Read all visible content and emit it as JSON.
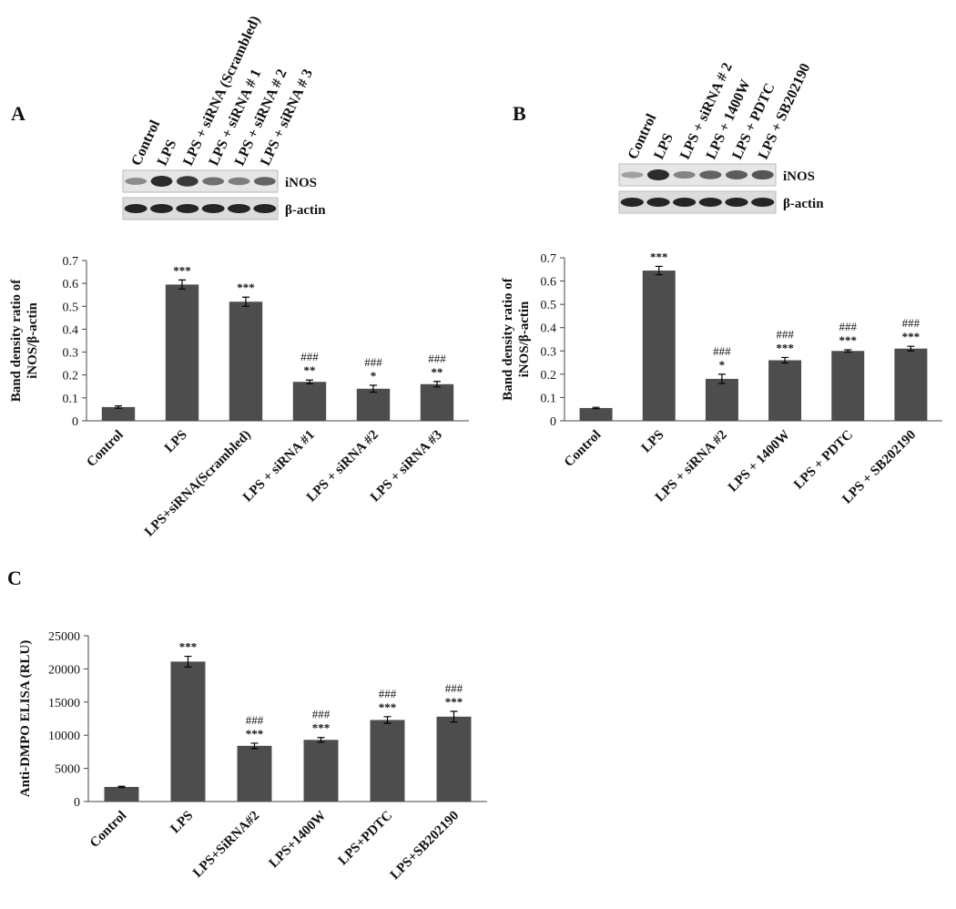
{
  "chart_data": [
    {
      "type": "bar",
      "panel": "A",
      "blot_lanes": [
        "Control",
        "LPS",
        "LPS + siRNA (Scrambled)",
        "LPS + siRNA # 1",
        "LPS + siRNA # 2",
        "LPS + siRNA # 3"
      ],
      "blot_bands": [
        "iNOS",
        "β-actin"
      ],
      "ylabel": [
        "Band density ratio of",
        "iNOS/β-actin"
      ],
      "categories": [
        "Control",
        "LPS",
        "LPS+siRNA(Scrambled)",
        "LPS + siRNA #1",
        "LPS + siRNA #2",
        "LPS + siRNA #3"
      ],
      "values": [
        0.06,
        0.595,
        0.52,
        0.17,
        0.14,
        0.16
      ],
      "errors": [
        0.005,
        0.02,
        0.02,
        0.008,
        0.015,
        0.012
      ],
      "sig_star": [
        null,
        "***",
        "***",
        "**",
        "*",
        "**"
      ],
      "sig_hash": [
        null,
        null,
        null,
        "###",
        "###",
        "###"
      ],
      "color": "#4d4d4d",
      "ylim": [
        0,
        0.7
      ],
      "yticks": [
        0,
        0.1,
        0.2,
        0.3,
        0.4,
        0.5,
        0.6,
        0.7
      ]
    },
    {
      "type": "bar",
      "panel": "B",
      "blot_lanes": [
        "Control",
        "LPS",
        "LPS + siRNA # 2",
        "LPS + 1400W",
        "LPS + PDTC",
        "LPS + SB202190"
      ],
      "blot_bands": [
        "iNOS",
        "β-actin"
      ],
      "ylabel": [
        "Band density ratio of",
        "iNOS/β-actin"
      ],
      "categories": [
        "Control",
        "LPS",
        "LPS + siRNA #2",
        "LPS + 1400W",
        "LPS + PDTC",
        "LPS + SB202190"
      ],
      "values": [
        0.055,
        0.645,
        0.18,
        0.26,
        0.3,
        0.31
      ],
      "errors": [
        0.003,
        0.018,
        0.02,
        0.012,
        0.005,
        0.01
      ],
      "sig_star": [
        null,
        "***",
        "*",
        "***",
        "***",
        "***"
      ],
      "sig_hash": [
        null,
        null,
        "###",
        "###",
        "###",
        "###"
      ],
      "color": "#4d4d4d",
      "ylim": [
        0,
        0.7
      ],
      "yticks": [
        0,
        0.1,
        0.2,
        0.3,
        0.4,
        0.5,
        0.6,
        0.7
      ]
    },
    {
      "type": "bar",
      "panel": "C",
      "ylabel": [
        "Anti-DMPO ELISA (RLU)"
      ],
      "categories": [
        "Control",
        "LPS",
        "LPS+SiRNA#2",
        "LPS+1400W",
        "LPS+PDTC",
        "LPS+SB202190"
      ],
      "values": [
        2200,
        21100,
        8400,
        9300,
        12300,
        12800
      ],
      "errors": [
        100,
        800,
        400,
        350,
        500,
        800
      ],
      "sig_star": [
        null,
        "***",
        "***",
        "***",
        "***",
        "***"
      ],
      "sig_hash": [
        null,
        null,
        "###",
        "###",
        "###",
        "###"
      ],
      "color": "#4d4d4d",
      "ylim": [
        0,
        25000
      ],
      "yticks": [
        0,
        5000,
        10000,
        15000,
        20000,
        25000
      ]
    }
  ]
}
